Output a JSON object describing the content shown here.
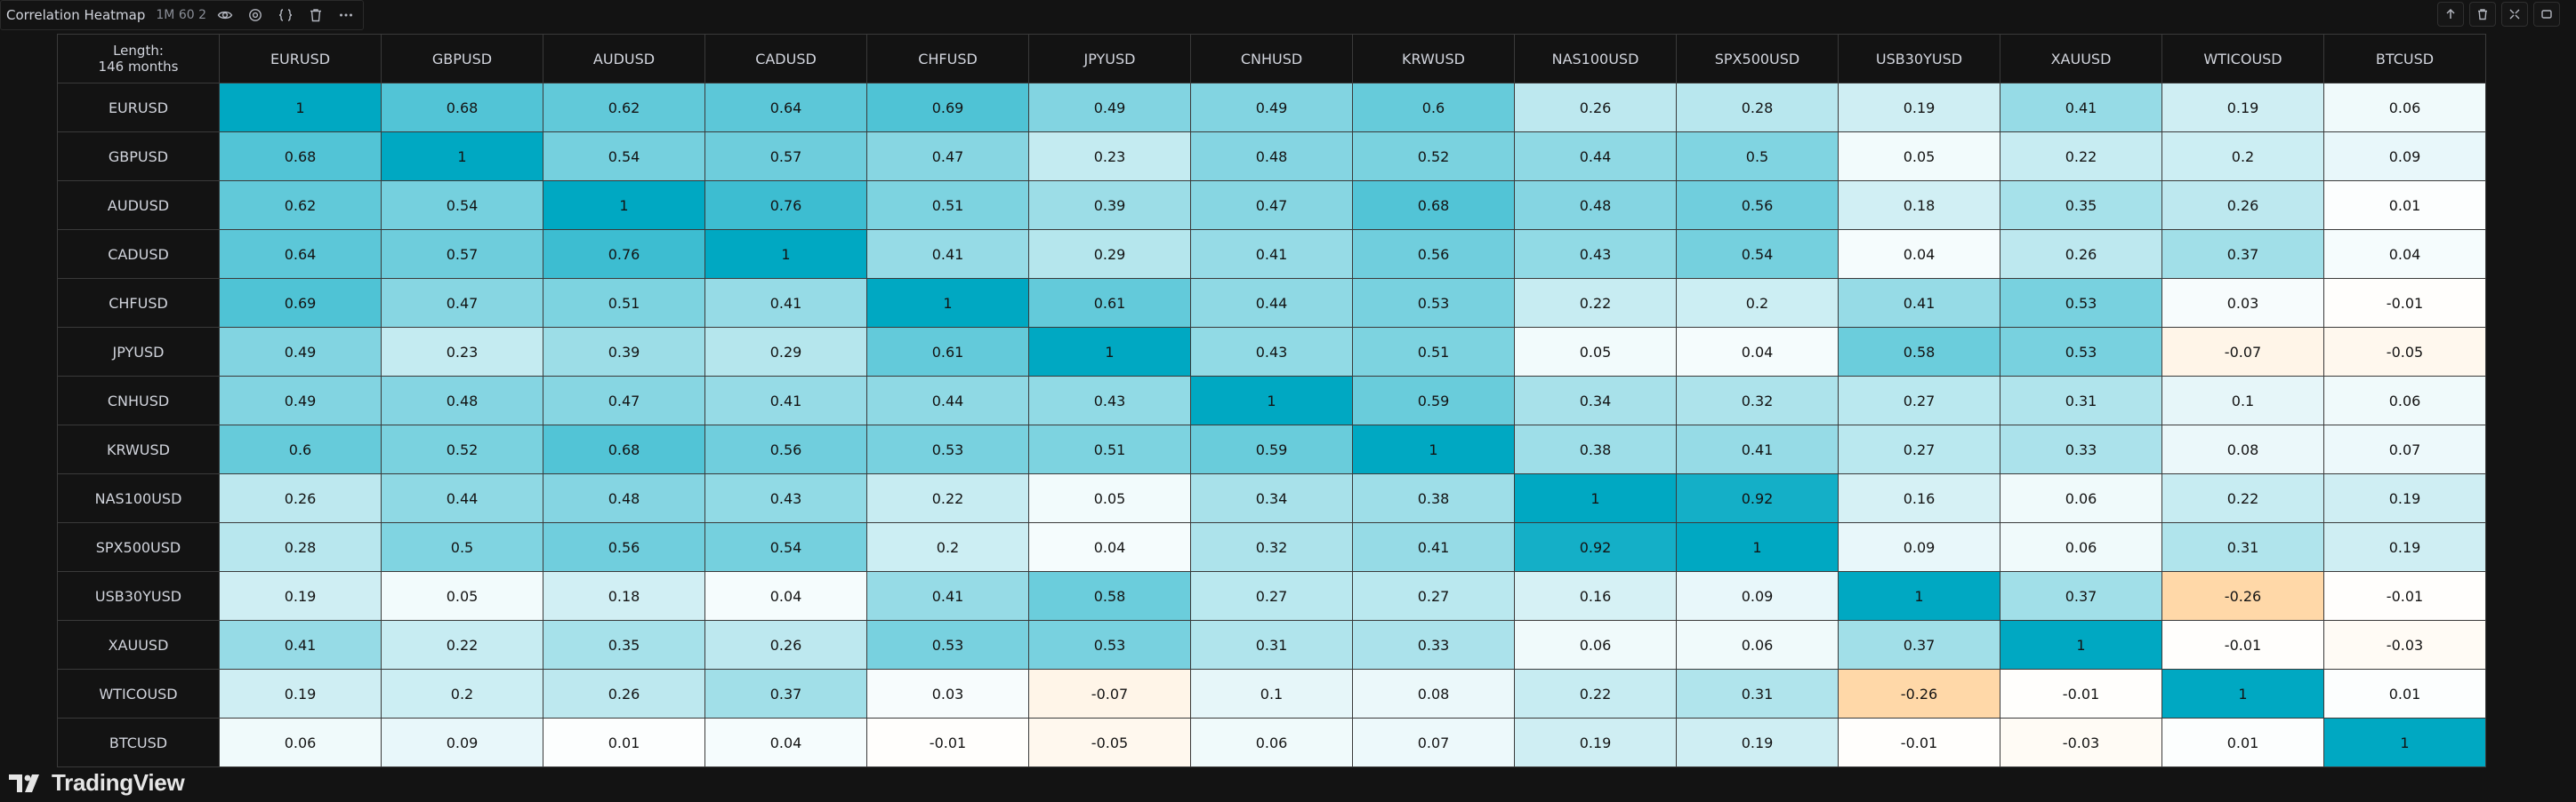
{
  "indicator": {
    "title": "Correlation Heatmap",
    "params": "1M 60 2",
    "icons": [
      "eye-icon",
      "settings-icon",
      "code-icon",
      "trash-icon",
      "more-icon"
    ]
  },
  "toolbar": {
    "icons": [
      "arrow-up-icon",
      "trash-icon",
      "collapse-icon",
      "maximize-icon"
    ]
  },
  "corner_label": {
    "line1": "Length:",
    "line2": "146 months"
  },
  "branding": {
    "logo_text": "TradingView"
  },
  "colors": {
    "background": "#131313",
    "positive_max": "#00a8c2",
    "neutral": "#ffffff",
    "negative_max": "#ffd8a8",
    "header_text": "#d1d4dc",
    "cell_text": "#131313"
  },
  "chart_data": {
    "type": "heatmap",
    "title": "Correlation Heatmap",
    "symbols": [
      "EURUSD",
      "GBPUSD",
      "AUDUSD",
      "CADUSD",
      "CHFUSD",
      "JPYUSD",
      "CNHUSD",
      "KRWUSD",
      "NAS100USD",
      "SPX500USD",
      "USB30YUSD",
      "XAUUSD",
      "WTICOUSD",
      "BTCUSD"
    ],
    "matrix": [
      [
        1,
        0.68,
        0.62,
        0.64,
        0.69,
        0.49,
        0.49,
        0.6,
        0.26,
        0.28,
        0.19,
        0.41,
        0.19,
        0.06
      ],
      [
        0.68,
        1,
        0.54,
        0.57,
        0.47,
        0.23,
        0.48,
        0.52,
        0.44,
        0.5,
        0.05,
        0.22,
        0.2,
        0.09
      ],
      [
        0.62,
        0.54,
        1,
        0.76,
        0.51,
        0.39,
        0.47,
        0.68,
        0.48,
        0.56,
        0.18,
        0.35,
        0.26,
        0.01
      ],
      [
        0.64,
        0.57,
        0.76,
        1,
        0.41,
        0.29,
        0.41,
        0.56,
        0.43,
        0.54,
        0.04,
        0.26,
        0.37,
        0.04
      ],
      [
        0.69,
        0.47,
        0.51,
        0.41,
        1,
        0.61,
        0.44,
        0.53,
        0.22,
        0.2,
        0.41,
        0.53,
        0.03,
        -0.01
      ],
      [
        0.49,
        0.23,
        0.39,
        0.29,
        0.61,
        1,
        0.43,
        0.51,
        0.05,
        0.04,
        0.58,
        0.53,
        -0.07,
        -0.05
      ],
      [
        0.49,
        0.48,
        0.47,
        0.41,
        0.44,
        0.43,
        1,
        0.59,
        0.34,
        0.32,
        0.27,
        0.31,
        0.1,
        0.06
      ],
      [
        0.6,
        0.52,
        0.68,
        0.56,
        0.53,
        0.51,
        0.59,
        1,
        0.38,
        0.41,
        0.27,
        0.33,
        0.08,
        0.07
      ],
      [
        0.26,
        0.44,
        0.48,
        0.43,
        0.22,
        0.05,
        0.34,
        0.38,
        1,
        0.92,
        0.16,
        0.06,
        0.22,
        0.19
      ],
      [
        0.28,
        0.5,
        0.56,
        0.54,
        0.2,
        0.04,
        0.32,
        0.41,
        0.92,
        1,
        0.09,
        0.06,
        0.31,
        0.19
      ],
      [
        0.19,
        0.05,
        0.18,
        0.04,
        0.41,
        0.58,
        0.27,
        0.27,
        0.16,
        0.09,
        1,
        0.37,
        -0.26,
        -0.01
      ],
      [
        0.41,
        0.22,
        0.35,
        0.26,
        0.53,
        0.53,
        0.31,
        0.33,
        0.06,
        0.06,
        0.37,
        1,
        -0.01,
        -0.03
      ],
      [
        0.19,
        0.2,
        0.26,
        0.37,
        0.03,
        -0.07,
        0.1,
        0.08,
        0.22,
        0.31,
        -0.26,
        -0.01,
        1,
        0.01
      ],
      [
        0.06,
        0.09,
        0.01,
        0.04,
        -0.01,
        -0.05,
        0.06,
        0.07,
        0.19,
        0.19,
        -0.01,
        -0.03,
        0.01,
        1
      ]
    ]
  }
}
